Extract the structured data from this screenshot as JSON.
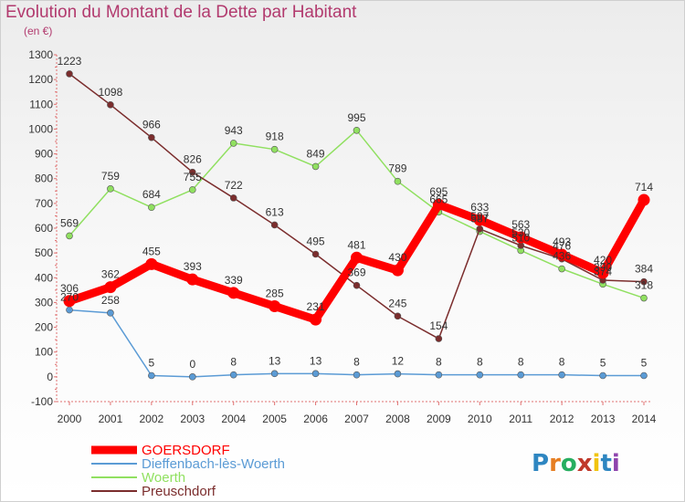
{
  "title": "Evolution du Montant de la Dette par Habitant",
  "subtitle": "(en €)",
  "logo": {
    "letters": [
      "P",
      "r",
      "o",
      "x",
      "i",
      "t",
      "i"
    ],
    "colors": [
      "#2e86c1",
      "#e67e22",
      "#27ae60",
      "#c0392b",
      "#f1c40f",
      "#2e86c1",
      "#8e44ad"
    ]
  },
  "chart_data": {
    "type": "line",
    "title": "Evolution du Montant de la Dette par Habitant",
    "ylabel": "(en €)",
    "x": [
      "2000",
      "2001",
      "2002",
      "2003",
      "2004",
      "2005",
      "2006",
      "2007",
      "2008",
      "2009",
      "2010",
      "2011",
      "2012",
      "2013",
      "2014"
    ],
    "ylim": [
      -100,
      1300
    ],
    "yticks": [
      -100,
      0,
      100,
      200,
      300,
      400,
      500,
      600,
      700,
      800,
      900,
      1000,
      1100,
      1200,
      1300
    ],
    "grid": false,
    "legend_position": "bottom-left",
    "series": [
      {
        "name": "GOERSDORF",
        "color": "#ff0000",
        "emphasis": true,
        "values": [
          306,
          362,
          455,
          393,
          339,
          285,
          231,
          481,
          430,
          695,
          633,
          563,
          493,
          420,
          714
        ]
      },
      {
        "name": "Dieffenbach-lès-Woerth",
        "color": "#5b9bd5",
        "values": [
          270,
          258,
          5,
          0,
          8,
          13,
          13,
          8,
          12,
          8,
          8,
          8,
          8,
          5,
          5
        ]
      },
      {
        "name": "Woerth",
        "color": "#90e060",
        "values": [
          569,
          759,
          684,
          755,
          943,
          918,
          849,
          995,
          789,
          665,
          587,
          510,
          436,
          374,
          318
        ]
      },
      {
        "name": "Preuschdorf",
        "color": "#7b2d2d",
        "values": [
          1223,
          1098,
          966,
          826,
          722,
          613,
          495,
          369,
          245,
          154,
          597,
          530,
          476,
          390,
          384
        ]
      }
    ]
  }
}
